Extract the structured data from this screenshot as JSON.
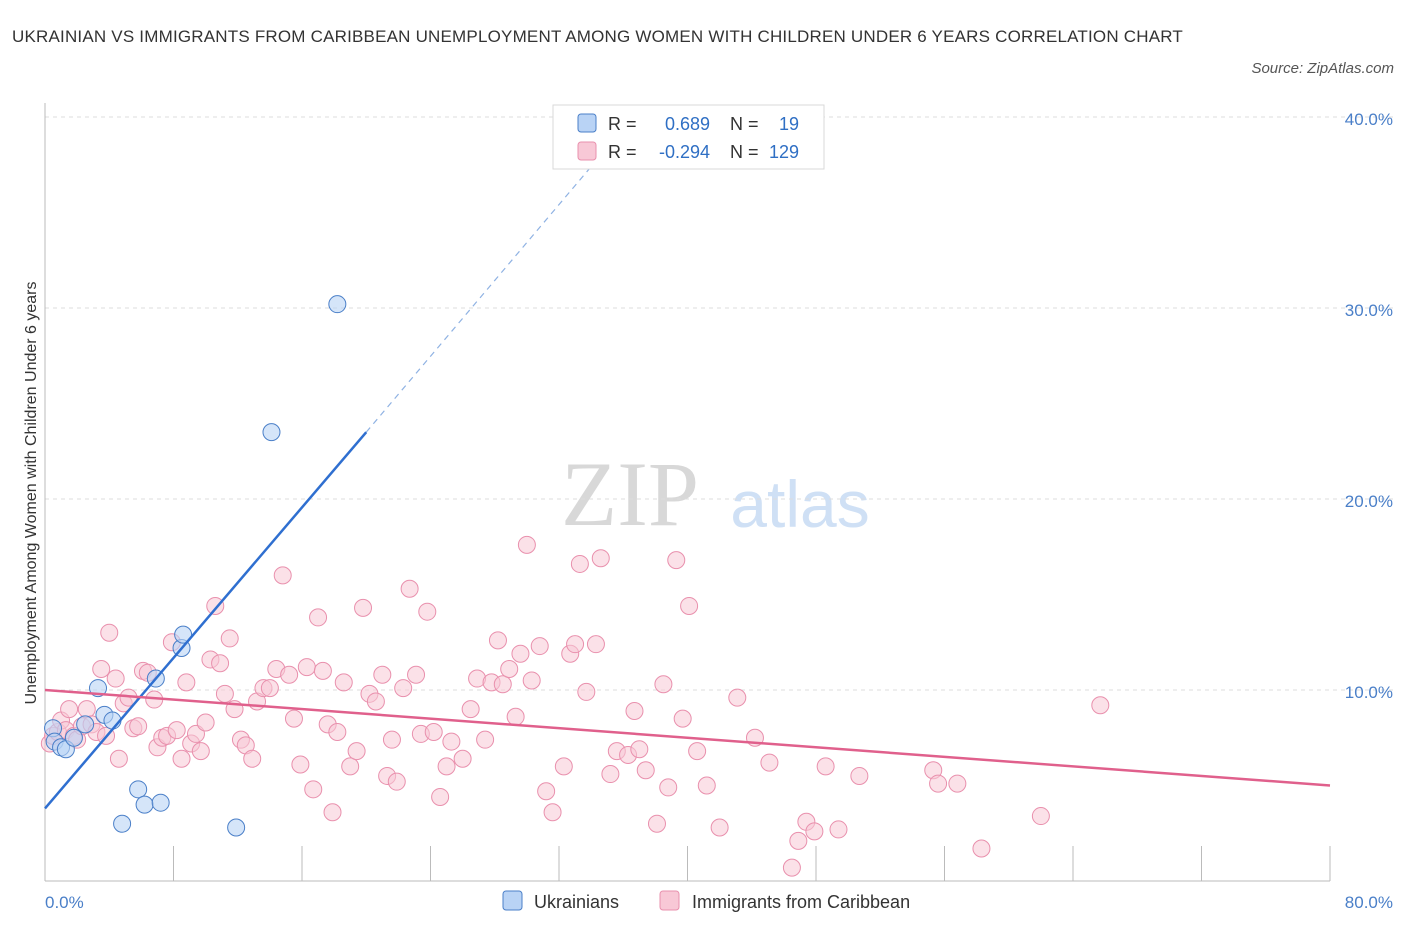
{
  "title": "UKRAINIAN VS IMMIGRANTS FROM CARIBBEAN UNEMPLOYMENT AMONG WOMEN WITH CHILDREN UNDER 6 YEARS CORRELATION CHART",
  "source": "Source: ZipAtlas.com",
  "watermark": {
    "zip": "ZIP",
    "atlas": "atlas"
  },
  "legend": {
    "r_label": "R =",
    "n_label": "N =",
    "rows": [
      {
        "r": "0.689",
        "n": "19"
      },
      {
        "r": "-0.294",
        "n": "129"
      }
    ]
  },
  "colors": {
    "ukrainians_fill": "#b9d3f5",
    "ukrainians_stroke": "#4a7fc8",
    "ukrainians_line": "#2f6fd0",
    "caribbean_fill": "#f8c8d6",
    "caribbean_stroke": "#e990ad",
    "caribbean_line": "#e0608c",
    "axis_text": "#4a7fc8"
  },
  "chart_data": {
    "type": "scatter",
    "title": "UKRAINIAN VS IMMIGRANTS FROM CARIBBEAN UNEMPLOYMENT AMONG WOMEN WITH CHILDREN UNDER 6 YEARS CORRELATION CHART",
    "xlabel": "",
    "ylabel": "Unemployment Among Women with Children Under 6 years",
    "xlim": [
      0,
      80
    ],
    "ylim": [
      0,
      40
    ],
    "x_tick_labels": [
      "0.0%",
      "80.0%"
    ],
    "y_ticks": [
      10,
      20,
      30,
      40
    ],
    "y_tick_labels": [
      "10.0%",
      "20.0%",
      "30.0%",
      "40.0%"
    ],
    "grid": true,
    "legend_position": "top-center",
    "series": [
      {
        "name": "Ukrainians",
        "r": 0.689,
        "n": 19,
        "trend": {
          "x": [
            0,
            20
          ],
          "y": [
            3.8,
            23.5
          ],
          "dashed_to": [
            34,
            37.4
          ]
        },
        "points": [
          [
            0.5,
            8.0
          ],
          [
            0.6,
            7.3
          ],
          [
            1.0,
            7.0
          ],
          [
            1.3,
            6.9
          ],
          [
            1.8,
            7.5
          ],
          [
            2.5,
            8.2
          ],
          [
            3.3,
            10.1
          ],
          [
            3.7,
            8.7
          ],
          [
            4.2,
            8.4
          ],
          [
            4.8,
            3.0
          ],
          [
            5.8,
            4.8
          ],
          [
            6.2,
            4.0
          ],
          [
            6.9,
            10.6
          ],
          [
            7.2,
            4.1
          ],
          [
            8.5,
            12.2
          ],
          [
            8.6,
            12.9
          ],
          [
            11.9,
            2.8
          ],
          [
            14.1,
            23.5
          ],
          [
            18.2,
            30.2
          ]
        ]
      },
      {
        "name": "Immigrants from Caribbean",
        "r": -0.294,
        "n": 129,
        "trend": {
          "x": [
            0,
            80
          ],
          "y": [
            10.0,
            5.0
          ]
        },
        "points": [
          [
            0.3,
            7.2
          ],
          [
            0.5,
            7.6
          ],
          [
            0.8,
            7.8
          ],
          [
            1.0,
            8.4
          ],
          [
            1.3,
            7.9
          ],
          [
            1.5,
            9.0
          ],
          [
            1.8,
            7.6
          ],
          [
            2.0,
            7.4
          ],
          [
            2.3,
            8.1
          ],
          [
            2.6,
            9.0
          ],
          [
            2.9,
            8.2
          ],
          [
            3.2,
            7.8
          ],
          [
            3.5,
            11.1
          ],
          [
            3.8,
            7.6
          ],
          [
            4.0,
            13.0
          ],
          [
            4.4,
            10.6
          ],
          [
            4.6,
            6.4
          ],
          [
            4.9,
            9.3
          ],
          [
            5.2,
            9.6
          ],
          [
            5.5,
            8.0
          ],
          [
            5.8,
            8.1
          ],
          [
            6.1,
            11.0
          ],
          [
            6.4,
            10.9
          ],
          [
            6.8,
            9.5
          ],
          [
            7.0,
            7.0
          ],
          [
            7.3,
            7.5
          ],
          [
            7.6,
            7.6
          ],
          [
            7.9,
            12.5
          ],
          [
            8.2,
            7.9
          ],
          [
            8.5,
            6.4
          ],
          [
            8.8,
            10.4
          ],
          [
            9.1,
            7.2
          ],
          [
            9.4,
            7.7
          ],
          [
            9.7,
            6.8
          ],
          [
            10.0,
            8.3
          ],
          [
            10.3,
            11.6
          ],
          [
            10.6,
            14.4
          ],
          [
            10.9,
            11.4
          ],
          [
            11.2,
            9.8
          ],
          [
            11.5,
            12.7
          ],
          [
            11.8,
            9.0
          ],
          [
            12.2,
            7.4
          ],
          [
            12.5,
            7.1
          ],
          [
            12.9,
            6.4
          ],
          [
            13.2,
            9.4
          ],
          [
            13.6,
            10.1
          ],
          [
            14.0,
            10.1
          ],
          [
            14.4,
            11.1
          ],
          [
            14.8,
            16.0
          ],
          [
            15.2,
            10.8
          ],
          [
            15.5,
            8.5
          ],
          [
            15.9,
            6.1
          ],
          [
            16.3,
            11.2
          ],
          [
            16.7,
            4.8
          ],
          [
            17.0,
            13.8
          ],
          [
            17.3,
            11.0
          ],
          [
            17.6,
            8.2
          ],
          [
            17.9,
            3.6
          ],
          [
            18.2,
            7.8
          ],
          [
            18.6,
            10.4
          ],
          [
            19.0,
            6.0
          ],
          [
            19.4,
            6.8
          ],
          [
            19.8,
            14.3
          ],
          [
            20.2,
            9.8
          ],
          [
            20.6,
            9.4
          ],
          [
            21.0,
            10.8
          ],
          [
            21.3,
            5.5
          ],
          [
            21.6,
            7.4
          ],
          [
            21.9,
            5.2
          ],
          [
            22.3,
            10.1
          ],
          [
            22.7,
            15.3
          ],
          [
            23.1,
            10.8
          ],
          [
            23.4,
            7.7
          ],
          [
            23.8,
            14.1
          ],
          [
            24.2,
            7.8
          ],
          [
            24.6,
            4.4
          ],
          [
            25.0,
            6.0
          ],
          [
            25.3,
            7.3
          ],
          [
            26.0,
            6.4
          ],
          [
            26.5,
            9.0
          ],
          [
            26.9,
            10.6
          ],
          [
            27.4,
            7.4
          ],
          [
            27.8,
            10.4
          ],
          [
            28.2,
            12.6
          ],
          [
            28.5,
            10.3
          ],
          [
            28.9,
            11.1
          ],
          [
            29.3,
            8.6
          ],
          [
            29.6,
            11.9
          ],
          [
            30.0,
            17.6
          ],
          [
            30.3,
            10.5
          ],
          [
            30.8,
            12.3
          ],
          [
            31.2,
            4.7
          ],
          [
            31.6,
            3.6
          ],
          [
            32.3,
            6.0
          ],
          [
            32.7,
            11.9
          ],
          [
            33.0,
            12.4
          ],
          [
            33.3,
            16.6
          ],
          [
            33.7,
            9.9
          ],
          [
            34.3,
            12.4
          ],
          [
            34.6,
            16.9
          ],
          [
            35.2,
            5.6
          ],
          [
            35.6,
            6.8
          ],
          [
            36.3,
            6.6
          ],
          [
            36.7,
            8.9
          ],
          [
            37.0,
            6.9
          ],
          [
            37.4,
            5.8
          ],
          [
            38.1,
            3.0
          ],
          [
            38.5,
            10.3
          ],
          [
            38.8,
            4.9
          ],
          [
            39.3,
            16.8
          ],
          [
            39.7,
            8.5
          ],
          [
            40.1,
            14.4
          ],
          [
            40.6,
            6.8
          ],
          [
            41.2,
            5.0
          ],
          [
            42.0,
            2.8
          ],
          [
            43.1,
            9.6
          ],
          [
            44.2,
            7.5
          ],
          [
            45.1,
            6.2
          ],
          [
            46.9,
            2.1
          ],
          [
            47.4,
            3.1
          ],
          [
            47.9,
            2.6
          ],
          [
            48.6,
            6.0
          ],
          [
            49.4,
            2.7
          ],
          [
            50.7,
            5.5
          ],
          [
            55.3,
            5.8
          ],
          [
            55.6,
            5.1
          ],
          [
            56.8,
            5.1
          ],
          [
            58.3,
            1.7
          ],
          [
            62.0,
            3.4
          ],
          [
            65.7,
            9.2
          ],
          [
            46.5,
            0.7
          ]
        ]
      }
    ]
  },
  "bottom_legend": [
    {
      "label": "Ukrainians"
    },
    {
      "label": "Immigrants from Caribbean"
    }
  ]
}
